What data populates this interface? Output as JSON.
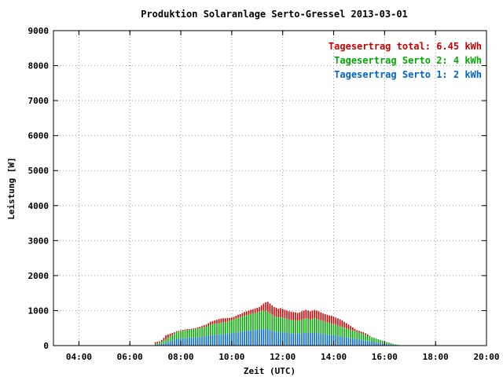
{
  "chart_data": {
    "type": "bar",
    "title": "Produktion Solaranlage Serto-Gressel 2013-03-01",
    "xlabel": "Zeit (UTC)",
    "ylabel": "Leistung [W]",
    "ylim": [
      0,
      9000
    ],
    "xlim": [
      "03:00",
      "20:00"
    ],
    "xticks": [
      "04:00",
      "06:00",
      "08:00",
      "10:00",
      "12:00",
      "14:00",
      "16:00",
      "18:00",
      "20:00"
    ],
    "yticks": [
      "0",
      "1000",
      "2000",
      "3000",
      "4000",
      "5000",
      "6000",
      "7000",
      "8000",
      "9000"
    ],
    "grid": true,
    "legend_position": "top-right",
    "legend": [
      {
        "label": "Tagesertrag total: 6.45 kWh",
        "color": "#cc0000"
      },
      {
        "label": "Tagesertrag Serto 2: 4 kWh",
        "color": "#00aa00"
      },
      {
        "label": "Tagesertrag Serto 1: 2 kWh",
        "color": "#0066cc"
      }
    ],
    "colors": {
      "total": "#cc0000",
      "serto2": "#00aa00",
      "serto1": "#0066cc"
    },
    "interval_minutes": 5,
    "stacking": "Serto 1 (bottom, blue), Serto 2 (middle, green), total shown as red top",
    "x": [
      "07:00",
      "07:05",
      "07:10",
      "07:15",
      "07:20",
      "07:25",
      "07:30",
      "07:35",
      "07:40",
      "07:45",
      "07:50",
      "07:55",
      "08:00",
      "08:05",
      "08:10",
      "08:15",
      "08:20",
      "08:25",
      "08:30",
      "08:35",
      "08:40",
      "08:45",
      "08:50",
      "08:55",
      "09:00",
      "09:05",
      "09:10",
      "09:15",
      "09:20",
      "09:25",
      "09:30",
      "09:35",
      "09:40",
      "09:45",
      "09:50",
      "09:55",
      "10:00",
      "10:05",
      "10:10",
      "10:15",
      "10:20",
      "10:25",
      "10:30",
      "10:35",
      "10:40",
      "10:45",
      "10:50",
      "10:55",
      "11:00",
      "11:05",
      "11:10",
      "11:15",
      "11:20",
      "11:25",
      "11:30",
      "11:35",
      "11:40",
      "11:45",
      "11:50",
      "11:55",
      "12:00",
      "12:05",
      "12:10",
      "12:15",
      "12:20",
      "12:25",
      "12:30",
      "12:35",
      "12:40",
      "12:45",
      "12:50",
      "12:55",
      "13:00",
      "13:05",
      "13:10",
      "13:15",
      "13:20",
      "13:25",
      "13:30",
      "13:35",
      "13:40",
      "13:45",
      "13:50",
      "13:55",
      "14:00",
      "14:05",
      "14:10",
      "14:15",
      "14:20",
      "14:25",
      "14:30",
      "14:35",
      "14:40",
      "14:45",
      "14:50",
      "14:55",
      "15:00",
      "15:05",
      "15:10",
      "15:15",
      "15:20",
      "15:25",
      "15:30",
      "15:35",
      "15:40",
      "15:45",
      "15:50",
      "15:55",
      "16:00",
      "16:05",
      "16:10",
      "16:15",
      "16:20",
      "16:25",
      "16:30",
      "16:35",
      "16:40"
    ],
    "series": [
      {
        "name": "Serto 1",
        "values": [
          20,
          30,
          40,
          50,
          60,
          80,
          100,
          120,
          140,
          160,
          180,
          190,
          200,
          200,
          210,
          210,
          215,
          215,
          220,
          225,
          230,
          240,
          250,
          260,
          270,
          280,
          290,
          300,
          300,
          305,
          310,
          310,
          315,
          320,
          330,
          340,
          350,
          360,
          370,
          380,
          390,
          400,
          410,
          420,
          420,
          430,
          430,
          440,
          450,
          460,
          470,
          480,
          470,
          460,
          440,
          420,
          400,
          390,
          380,
          390,
          380,
          370,
          360,
          350,
          350,
          340,
          340,
          330,
          340,
          350,
          360,
          370,
          360,
          350,
          360,
          370,
          360,
          350,
          340,
          330,
          320,
          310,
          300,
          300,
          290,
          280,
          270,
          260,
          250,
          240,
          230,
          220,
          210,
          200,
          190,
          180,
          170,
          160,
          150,
          140,
          130,
          120,
          110,
          100,
          90,
          80,
          70,
          60,
          50,
          40,
          35,
          30,
          20,
          15,
          10,
          5,
          0
        ]
      },
      {
        "name": "Serto 2",
        "values": [
          30,
          40,
          50,
          60,
          80,
          100,
          120,
          140,
          160,
          180,
          200,
          210,
          220,
          220,
          230,
          230,
          235,
          240,
          245,
          250,
          255,
          260,
          265,
          270,
          280,
          290,
          300,
          310,
          320,
          325,
          330,
          335,
          340,
          350,
          360,
          370,
          380,
          390,
          400,
          410,
          420,
          430,
          440,
          450,
          460,
          470,
          480,
          490,
          500,
          510,
          520,
          530,
          520,
          500,
          480,
          460,
          440,
          430,
          420,
          430,
          420,
          410,
          400,
          390,
          390,
          380,
          380,
          370,
          380,
          390,
          400,
          410,
          400,
          390,
          400,
          410,
          400,
          390,
          380,
          370,
          360,
          350,
          340,
          330,
          320,
          310,
          300,
          290,
          280,
          270,
          260,
          250,
          240,
          230,
          220,
          210,
          200,
          190,
          180,
          160,
          150,
          140,
          130,
          120,
          110,
          100,
          90,
          80,
          70,
          60,
          50,
          40,
          30,
          20,
          15,
          10,
          5
        ]
      },
      {
        "name": "Total",
        "values": [
          100,
          110,
          120,
          160,
          220,
          300,
          320,
          340,
          360,
          380,
          410,
          420,
          440,
          450,
          460,
          470,
          470,
          480,
          490,
          500,
          520,
          540,
          560,
          580,
          600,
          640,
          680,
          700,
          720,
          740,
          760,
          770,
          780,
          780,
          790,
          790,
          800,
          820,
          850,
          880,
          900,
          930,
          960,
          980,
          1000,
          1020,
          1040,
          1060,
          1080,
          1100,
          1150,
          1200,
          1240,
          1250,
          1200,
          1150,
          1100,
          1080,
          1050,
          1070,
          1050,
          1020,
          1000,
          980,
          970,
          960,
          950,
          930,
          950,
          980,
          1000,
          1020,
          1000,
          980,
          1000,
          1020,
          1000,
          980,
          950,
          920,
          900,
          880,
          860,
          850,
          830,
          800,
          780,
          750,
          720,
          680,
          640,
          600,
          560,
          520,
          480,
          440,
          420,
          400,
          380,
          350,
          320,
          280,
          240,
          200,
          170,
          140,
          110,
          90,
          70,
          50,
          35,
          25,
          15,
          10,
          5,
          0,
          0
        ]
      }
    ]
  }
}
